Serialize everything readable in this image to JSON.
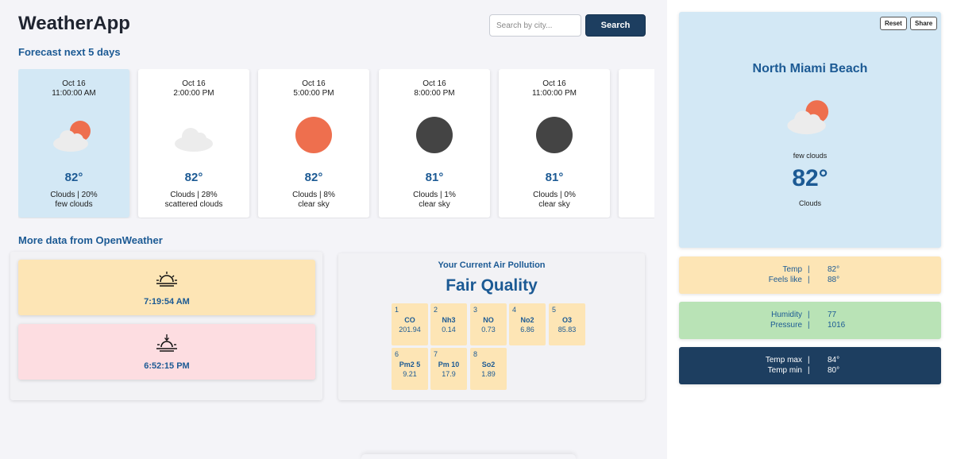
{
  "app": {
    "title": "WeatherApp"
  },
  "search": {
    "placeholder": "Search by city...",
    "button_label": "Search"
  },
  "sections": {
    "forecast_title": "Forecast next 5 days",
    "more_title": "More data from OpenWeather"
  },
  "forecast": [
    {
      "date": "Oct 16",
      "time": "11:00:00 AM",
      "icon": "sun-cloud-icon",
      "temp": "82°",
      "summary": "Clouds | 20%",
      "desc": "few clouds",
      "active": true
    },
    {
      "date": "Oct 16",
      "time": "2:00:00 PM",
      "icon": "cloud-icon",
      "temp": "82°",
      "summary": "Clouds | 28%",
      "desc": "scattered clouds",
      "active": false
    },
    {
      "date": "Oct 16",
      "time": "5:00:00 PM",
      "icon": "sun-icon",
      "temp": "82°",
      "summary": "Clouds | 8%",
      "desc": "clear sky",
      "active": false
    },
    {
      "date": "Oct 16",
      "time": "8:00:00 PM",
      "icon": "moon-icon",
      "temp": "81°",
      "summary": "Clouds | 1%",
      "desc": "clear sky",
      "active": false
    },
    {
      "date": "Oct 16",
      "time": "11:00:00 PM",
      "icon": "moon-icon",
      "temp": "81°",
      "summary": "Clouds | 0%",
      "desc": "clear sky",
      "active": false
    }
  ],
  "sun": {
    "sunrise": "7:19:54 AM",
    "sunset": "6:52:15 PM"
  },
  "air": {
    "title": "Your Current Air Pollution",
    "quality": "Fair Quality",
    "items": [
      {
        "index": "1",
        "name": "CO",
        "value": "201.94"
      },
      {
        "index": "2",
        "name": "Nh3",
        "value": "0.14"
      },
      {
        "index": "3",
        "name": "NO",
        "value": "0.73"
      },
      {
        "index": "4",
        "name": "No2",
        "value": "6.86"
      },
      {
        "index": "5",
        "name": "O3",
        "value": "85.83"
      },
      {
        "index": "6",
        "name": "Pm2 5",
        "value": "9.21"
      },
      {
        "index": "7",
        "name": "Pm 10",
        "value": "17.9"
      },
      {
        "index": "8",
        "name": "So2",
        "value": "1.89"
      }
    ]
  },
  "current": {
    "reset_label": "Reset",
    "share_label": "Share",
    "city": "North Miami Beach",
    "description": "few clouds",
    "temp": "82°",
    "main": "Clouds"
  },
  "details": {
    "temp_label": "Temp",
    "temp_value": "82°",
    "feels_label": "Feels like",
    "feels_value": "88°",
    "humidity_label": "Humidity",
    "humidity_value": "77",
    "pressure_label": "Pressure",
    "pressure_value": "1016",
    "max_label": "Temp max",
    "max_value": "84°",
    "min_label": "Temp min",
    "min_value": "80°",
    "separator": "|"
  },
  "colors": {
    "accent": "#1c5a94",
    "button": "#1d3e60",
    "active_card": "#d3e8f5",
    "sun": "#ee6f4e",
    "moon": "#444444",
    "cloud": "#ececec",
    "warm": "#fde5b5",
    "pink": "#fddde1",
    "green": "#b9e3b6"
  }
}
